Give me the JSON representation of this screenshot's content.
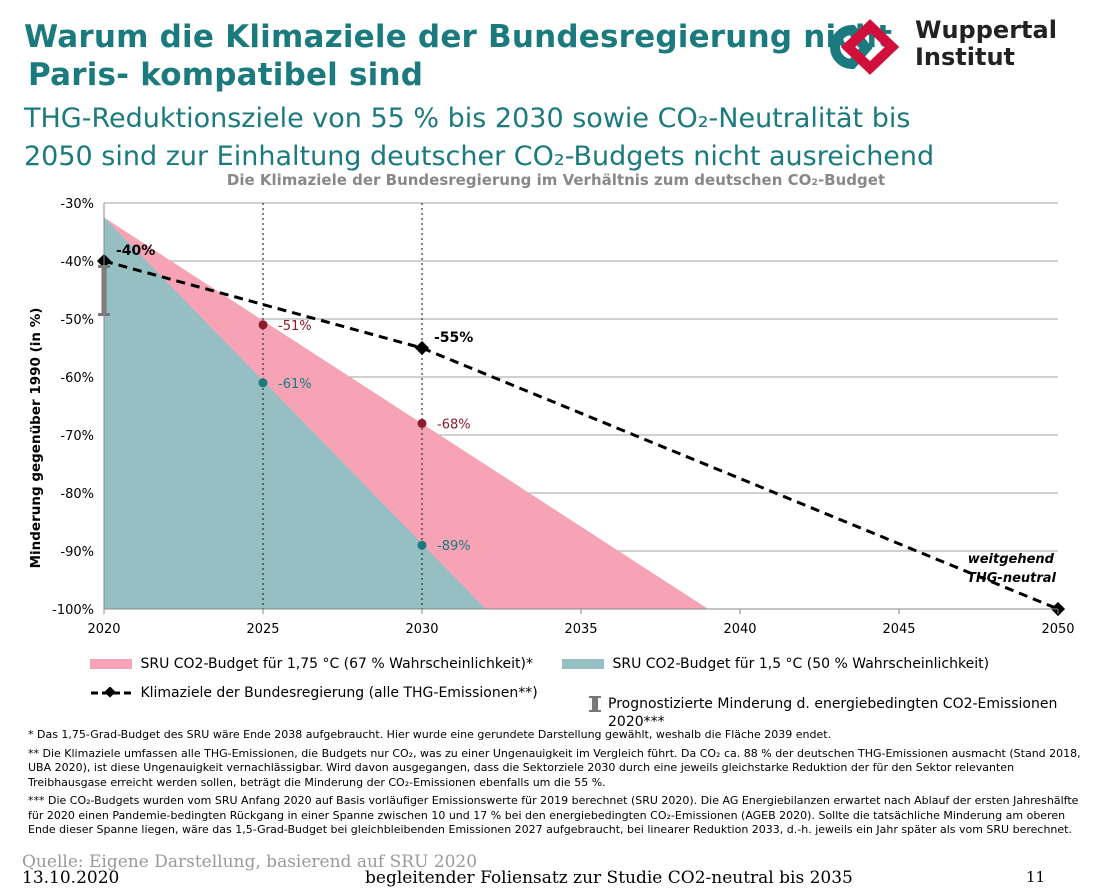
{
  "header": {
    "title_line1": "Warum die Klimaziele der Bundesregierung nicht",
    "title_line2": "Paris- kompatibel sind",
    "subtitle_line1": "THG-Reduktionsziele von 55 % bis 2030 sowie CO₂-Neutralität bis",
    "subtitle_line2": "2050 sind zur Einhaltung deutscher CO₂-Budgets nicht ausreichend"
  },
  "logo": {
    "line1": "Wuppertal",
    "line2": "Institut",
    "color_teal": "#1a7a7d",
    "color_red": "#d0103a"
  },
  "chart_data": {
    "type": "area",
    "title": "Die Klimaziele der Bundesregierung im Verhältnis zum deutschen CO₂-Budget",
    "xlabel": "",
    "ylabel": "Minderung gegenüber 1990 (in %)",
    "xlim": [
      2020,
      2050
    ],
    "ylim": [
      -100,
      -30
    ],
    "x_ticks": [
      "2020",
      "2025",
      "2030",
      "2035",
      "2040",
      "2045",
      "2050"
    ],
    "y_ticks": [
      "-30%",
      "-40%",
      "-50%",
      "-60%",
      "-70%",
      "-80%",
      "-90%",
      "-100%"
    ],
    "grid": true,
    "series": [
      {
        "name": "SRU CO2-Budget für 1,75 °C (67 % Wahrscheinlichkeit)*",
        "kind": "area",
        "color": "#f7a3b6",
        "x": [
          2020,
          2039
        ],
        "y": [
          -32.5,
          -100
        ],
        "marker_points": [
          {
            "x": 2025,
            "y": -51,
            "label": "-51%"
          },
          {
            "x": 2030,
            "y": -68,
            "label": "-68%"
          }
        ],
        "marker_color": "#8b1a2b"
      },
      {
        "name": "SRU CO2-Budget für 1,5 °C (50 % Wahrscheinlichkeit)",
        "kind": "area",
        "color": "#96bfc4",
        "x": [
          2020,
          2032
        ],
        "y": [
          -32.5,
          -100
        ],
        "marker_points": [
          {
            "x": 2025,
            "y": -61,
            "label": "-61%"
          },
          {
            "x": 2030,
            "y": -89,
            "label": "-89%"
          }
        ],
        "marker_color": "#1a7a7d"
      },
      {
        "name": "Klimaziele der Bundesregierung (alle THG-Emissionen**)",
        "kind": "line",
        "style": "dashed",
        "color": "#000000",
        "x": [
          2020,
          2030,
          2050
        ],
        "y": [
          -40,
          -55,
          -100
        ],
        "labels": [
          {
            "x": 2020,
            "y": -40,
            "text": "-40%"
          },
          {
            "x": 2030,
            "y": -55,
            "text": "-55%"
          }
        ]
      },
      {
        "name": "Prognostizierte Minderung d. energiebedingten CO2-Emissionen 2020***",
        "kind": "range",
        "color": "#777777",
        "x": 2020,
        "y_range": [
          -40,
          -45
        ]
      }
    ],
    "vlines": [
      2025,
      2030
    ],
    "annotations": [
      {
        "x": 2050,
        "y": -100,
        "text_line1": "weitgehend",
        "text_line2": "THG-neutral"
      }
    ]
  },
  "footnotes": {
    "f1": "* Das 1,75-Grad-Budget des SRU wäre Ende 2038 aufgebraucht. Hier wurde eine gerundete Darstellung gewählt, weshalb die Fläche 2039 endet.",
    "f2": "** Die Klimaziele umfassen alle THG-Emissionen, die Budgets nur CO₂, was zu einer Ungenauigkeit im Vergleich führt. Da CO₂ ca. 88 % der deutschen THG-Emissionen ausmacht (Stand 2018, UBA 2020), ist diese Ungenauigkeit vernachlässigbar. Wird davon ausgegangen, dass die Sektorziele 2030 durch eine jeweils gleichstarke Reduktion der für den Sektor relevanten Treibhausgase erreicht werden sollen, beträgt die Minderung der CO₂-Emissionen ebenfalls um die 55 %.",
    "f3": "*** Die CO₂-Budgets wurden vom SRU Anfang 2020 auf Basis vorläufiger Emissionswerte für 2019 berechnet (SRU 2020). Die AG Energiebilanzen erwartet nach Ablauf der ersten Jahreshälfte für 2020 einen Pandemie-bedingten Rückgang in einer Spanne zwischen 10 und 17 % bei den energiebedingten CO₂-Emissionen (AGEB 2020). Sollte die tatsächliche Minderung am oberen Ende dieser Spanne liegen, wäre das 1,5-Grad-Budget bei gleichbleibenden Emissionen 2027 aufgebraucht, bei linearer Reduktion 2033, d.-h. jeweils ein Jahr später als vom SRU berechnet."
  },
  "footer": {
    "source": "Quelle: Eigene Darstellung, basierend auf SRU 2020",
    "date": "13.10.2020",
    "center": "begleitender Foliensatz zur Studie CO2-neutral bis 2035",
    "page": "11"
  }
}
